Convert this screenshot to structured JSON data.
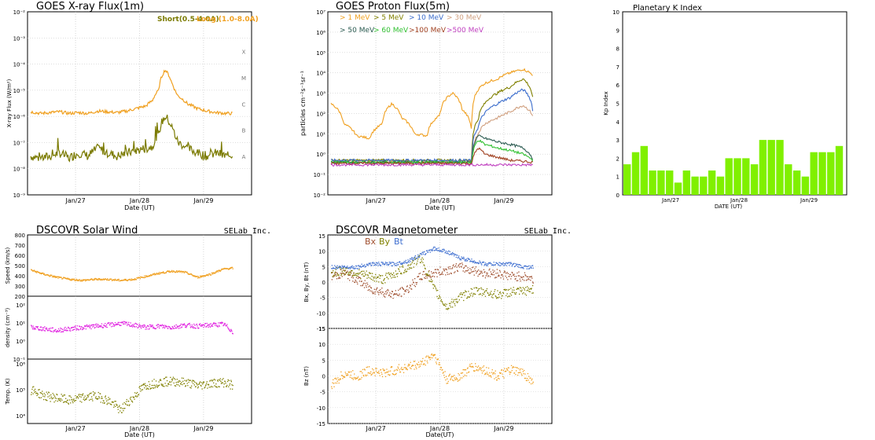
{
  "chart_data": [
    {
      "id": "xray",
      "type": "line",
      "title": "GOES X-ray Flux(1m)",
      "ylabel": "X-ray Flux (W/m²)",
      "xlabel": "Date (UT)",
      "yscale": "log",
      "ylim": [
        1e-09,
        0.01
      ],
      "y_ticks": [
        "10⁻⁹",
        "10⁻⁸",
        "10⁻⁷",
        "10⁻⁶",
        "10⁻⁵",
        "10⁻⁴",
        "10⁻³",
        "10⁻²"
      ],
      "class_labels": [
        "A",
        "B",
        "C",
        "M",
        "X"
      ],
      "x_ticks": [
        "Jan/27",
        "Jan/28",
        "Jan/29"
      ],
      "xlim_days": [
        26.25,
        29.75
      ],
      "series": [
        {
          "name": "Short(0.5-4.0A)",
          "color": "#7a7a00",
          "x": [
            26.3,
            26.45,
            26.6,
            26.75,
            26.9,
            27.05,
            27.2,
            27.35,
            27.5,
            27.65,
            27.8,
            27.95,
            28.1,
            28.2,
            28.3,
            28.4,
            28.5,
            28.55,
            28.6,
            28.75,
            28.9,
            29.05,
            29.2,
            29.35,
            29.45
          ],
          "y": [
            3e-08,
            2.5e-08,
            3e-08,
            4e-08,
            2.5e-08,
            4e-08,
            3e-08,
            6e-08,
            4e-08,
            3e-08,
            4e-08,
            5e-08,
            6e-08,
            7e-08,
            2e-07,
            1e-06,
            4e-07,
            2e-07,
            1e-07,
            6e-08,
            4e-08,
            3e-08,
            4e-08,
            3e-08,
            3.5e-08
          ]
        },
        {
          "name": "Long (1.0-8.0A)",
          "color": "#f0a020",
          "x": [
            26.3,
            26.45,
            26.6,
            26.75,
            26.9,
            27.05,
            27.2,
            27.35,
            27.5,
            27.65,
            27.8,
            27.95,
            28.1,
            28.2,
            28.3,
            28.4,
            28.5,
            28.55,
            28.6,
            28.75,
            28.9,
            29.05,
            29.2,
            29.35,
            29.45
          ],
          "y": [
            1.5e-06,
            1.3e-06,
            1.4e-06,
            1.5e-06,
            1.3e-06,
            1.4e-06,
            1.3e-06,
            1.6e-06,
            1.5e-06,
            1.4e-06,
            1.6e-06,
            2e-06,
            2.5e-06,
            4e-06,
            1e-05,
            6e-05,
            2e-05,
            1e-05,
            6e-06,
            3e-06,
            2e-06,
            1.6e-06,
            1.4e-06,
            1.3e-06,
            1.3e-06
          ]
        }
      ]
    },
    {
      "id": "proton",
      "type": "line",
      "title": "GOES Proton Flux(5m)",
      "ylabel": "particles cm⁻²s⁻¹sr⁻¹",
      "xlabel": "Date (UT)",
      "yscale": "log",
      "ylim": [
        0.01,
        10000000.0
      ],
      "y_ticks": [
        "10⁻²",
        "10⁻¹",
        "10⁰",
        "10¹",
        "10²",
        "10³",
        "10⁴",
        "10⁵",
        "10⁶",
        "10⁷"
      ],
      "x_ticks": [
        "Jan/27",
        "Jan/28",
        "Jan/29"
      ],
      "xlim_days": [
        26.25,
        29.75
      ],
      "series": [
        {
          "name": "> 1 MeV",
          "color": "#f0a020",
          "x": [
            26.3,
            26.5,
            26.7,
            26.9,
            27.1,
            27.25,
            27.4,
            27.6,
            27.8,
            28.0,
            28.2,
            28.35,
            28.5,
            28.7,
            28.9,
            29.1,
            29.3,
            29.45
          ],
          "y": [
            300,
            30,
            8,
            6,
            30,
            300,
            60,
            10,
            8,
            80,
            1000,
            150,
            10,
            3000,
            5000,
            10000,
            15000,
            8000
          ]
        },
        {
          "name": "> 5 MeV",
          "color": "#808000",
          "x": [
            26.3,
            26.9,
            27.5,
            28.0,
            28.5,
            28.6,
            28.7,
            28.9,
            29.1,
            29.3,
            29.45
          ],
          "y": [
            0.5,
            0.5,
            0.5,
            0.5,
            0.5,
            50,
            300,
            1000,
            2000,
            5000,
            600
          ]
        },
        {
          "name": "> 10 MeV",
          "color": "#3a6ccc",
          "x": [
            26.3,
            26.9,
            27.5,
            28.0,
            28.5,
            28.6,
            28.7,
            28.9,
            29.1,
            29.3,
            29.45
          ],
          "y": [
            0.5,
            0.5,
            0.5,
            0.5,
            0.5,
            20,
            100,
            300,
            600,
            1500,
            150
          ]
        },
        {
          "name": "> 30 MeV",
          "color": "#d0a080",
          "x": [
            26.3,
            26.9,
            27.5,
            28.0,
            28.5,
            28.6,
            28.7,
            28.9,
            29.1,
            29.3,
            29.45
          ],
          "y": [
            0.4,
            0.4,
            0.4,
            0.4,
            0.4,
            10,
            30,
            60,
            120,
            250,
            80
          ]
        },
        {
          "name": "> 50 MeV",
          "color": "#2a5a50",
          "x": [
            26.3,
            26.9,
            27.5,
            28.0,
            28.5,
            28.6,
            28.7,
            28.9,
            29.1,
            29.3,
            29.45
          ],
          "y": [
            0.4,
            0.4,
            0.4,
            0.4,
            0.4,
            8,
            6,
            4,
            3,
            2,
            0.6
          ]
        },
        {
          "name": "> 60 MeV",
          "color": "#30c030",
          "x": [
            26.3,
            26.9,
            27.5,
            28.0,
            28.5,
            28.6,
            28.7,
            28.9,
            29.1,
            29.3,
            29.45
          ],
          "y": [
            0.4,
            0.4,
            0.4,
            0.4,
            0.4,
            5,
            3,
            2,
            1.5,
            1,
            0.5
          ]
        },
        {
          "name": ">100 MeV",
          "color": "#a04020",
          "x": [
            26.3,
            26.9,
            27.5,
            28.0,
            28.5,
            28.6,
            28.7,
            28.9,
            29.1,
            29.3,
            29.45
          ],
          "y": [
            0.35,
            0.35,
            0.35,
            0.35,
            0.35,
            2,
            1,
            0.7,
            0.5,
            0.45,
            0.4
          ]
        },
        {
          "name": ">500 MeV",
          "color": "#c040c0",
          "x": [
            26.3,
            26.9,
            27.5,
            28.0,
            28.5,
            28.9,
            29.3,
            29.45
          ],
          "y": [
            0.3,
            0.3,
            0.3,
            0.3,
            0.3,
            0.3,
            0.3,
            0.3
          ]
        }
      ]
    },
    {
      "id": "kp",
      "type": "bar",
      "title": "Planetary K Index",
      "ylabel": "Kp Index",
      "xlabel": "DATE (UT)",
      "ylim": [
        0,
        10
      ],
      "y_ticks": [
        "0",
        "1",
        "2",
        "3",
        "4",
        "5",
        "6",
        "7",
        "8",
        "9",
        "10"
      ],
      "x_ticks": [
        "Jan/27",
        "Jan/28",
        "Jan/29"
      ],
      "color": "#80f000",
      "values": [
        1.67,
        2.33,
        2.67,
        1.33,
        1.33,
        1.33,
        0.67,
        1.33,
        1.0,
        1.0,
        1.33,
        1.0,
        2.0,
        2.0,
        2.0,
        1.67,
        3.0,
        3.0,
        3.0,
        1.67,
        1.33,
        1.0,
        2.33,
        2.33,
        2.33,
        2.67
      ]
    },
    {
      "id": "solarwind",
      "type": "scatter",
      "title": "DSCOVR Solar Wind",
      "credit": "SELab Inc.",
      "xlabel": "Date (UT)",
      "x_ticks": [
        "Jan/27",
        "Jan/28",
        "Jan/29"
      ],
      "xlim_days": [
        26.25,
        29.75
      ],
      "panels": [
        {
          "ylabel": "Speed (km/s)",
          "y_ticks": [
            "200",
            "300",
            "400",
            "500",
            "600",
            "700",
            "800"
          ],
          "ylim": [
            200,
            800
          ],
          "color": "#f0a020",
          "x": [
            26.3,
            26.5,
            26.7,
            26.9,
            27.1,
            27.3,
            27.5,
            27.7,
            27.9,
            28.1,
            28.3,
            28.5,
            28.7,
            28.9,
            29.1,
            29.3,
            29.45
          ],
          "y": [
            460,
            420,
            390,
            370,
            360,
            370,
            370,
            360,
            370,
            400,
            430,
            450,
            440,
            390,
            420,
            470,
            480
          ]
        },
        {
          "ylabel": "density (cm⁻³)",
          "yscale": "log",
          "y_ticks": [
            "10⁻¹",
            "10⁰",
            "10¹",
            "10²"
          ],
          "ylim": [
            0.1,
            300
          ],
          "color": "#e020e0",
          "x": [
            26.3,
            26.5,
            26.7,
            26.9,
            27.1,
            27.3,
            27.5,
            27.7,
            27.9,
            28.1,
            28.3,
            28.5,
            28.7,
            28.9,
            29.1,
            29.3,
            29.45
          ],
          "y": [
            6,
            5,
            4,
            5,
            6,
            7,
            8,
            10,
            8,
            6,
            7,
            6,
            8,
            7,
            8,
            9,
            3
          ]
        },
        {
          "ylabel": "Temp. (K)",
          "yscale": "log",
          "y_ticks": [
            "10⁴",
            "10⁵",
            "10⁶"
          ],
          "ylim": [
            5000,
            1500000.0
          ],
          "color": "#808000",
          "x": [
            26.3,
            26.5,
            26.7,
            26.9,
            27.1,
            27.3,
            27.5,
            27.7,
            27.9,
            28.1,
            28.3,
            28.5,
            28.7,
            28.9,
            29.1,
            29.3,
            29.45
          ],
          "y": [
            100000.0,
            60000.0,
            50000.0,
            40000.0,
            50000.0,
            60000.0,
            40000.0,
            15000.0,
            50000.0,
            150000.0,
            200000.0,
            220000.0,
            200000.0,
            150000.0,
            180000.0,
            200000.0,
            150000.0
          ]
        }
      ]
    },
    {
      "id": "mag",
      "type": "scatter",
      "title": "DSCOVR Magnetometer",
      "credit": "SELab Inc.",
      "xlabel": "Date(UT)",
      "x_ticks": [
        "Jan/27",
        "Jan/28",
        "Jan/29"
      ],
      "xlim_days": [
        26.25,
        29.75
      ],
      "panels": [
        {
          "ylabel": "Bx, By, Bt (nT)",
          "ylim": [
            -15,
            15
          ],
          "y_ticks": [
            "-15",
            "-10",
            "-5",
            "0",
            "5",
            "10",
            "15"
          ],
          "series": [
            {
              "name": "Bx",
              "color": "#a05030",
              "x": [
                26.3,
                26.5,
                26.7,
                26.9,
                27.1,
                27.3,
                27.5,
                27.7,
                27.9,
                28.1,
                28.3,
                28.5,
                28.7,
                28.9,
                29.1,
                29.3,
                29.45
              ],
              "y": [
                2,
                3,
                1,
                -2,
                -3,
                -4,
                -2,
                2,
                3,
                4,
                5,
                4,
                3,
                3,
                2,
                2,
                1
              ]
            },
            {
              "name": "By",
              "color": "#808000",
              "x": [
                26.3,
                26.5,
                26.7,
                26.9,
                27.1,
                27.3,
                27.5,
                27.7,
                27.9,
                28.1,
                28.3,
                28.5,
                28.7,
                28.9,
                29.1,
                29.3,
                29.45
              ],
              "y": [
                3,
                4,
                3,
                2,
                1,
                3,
                5,
                8,
                -2,
                -8,
                -5,
                -3,
                -3,
                -4,
                -3,
                -3,
                -2
              ]
            },
            {
              "name": "Bt",
              "color": "#4070d0",
              "x": [
                26.3,
                26.5,
                26.7,
                26.9,
                27.1,
                27.3,
                27.5,
                27.7,
                27.9,
                28.1,
                28.3,
                28.5,
                28.7,
                28.9,
                29.1,
                29.3,
                29.45
              ],
              "y": [
                5,
                5,
                5,
                6,
                6,
                6,
                7,
                9,
                11,
                10,
                8,
                7,
                6,
                6,
                6,
                5,
                5
              ]
            }
          ]
        },
        {
          "ylabel": "Bz (nT)",
          "ylim": [
            -15,
            15
          ],
          "y_ticks": [
            "-15",
            "-10",
            "-5",
            "0",
            "5",
            "10",
            "15"
          ],
          "series": [
            {
              "name": "Bz",
              "color": "#f0a020",
              "x": [
                26.3,
                26.5,
                26.7,
                26.9,
                27.1,
                27.3,
                27.5,
                27.7,
                27.9,
                28.1,
                28.3,
                28.5,
                28.7,
                28.9,
                29.1,
                29.3,
                29.45
              ],
              "y": [
                -3,
                1,
                0,
                2,
                1,
                2,
                3,
                4,
                7,
                -1,
                0,
                3,
                2,
                0,
                2,
                1,
                -2
              ]
            }
          ]
        }
      ]
    }
  ]
}
